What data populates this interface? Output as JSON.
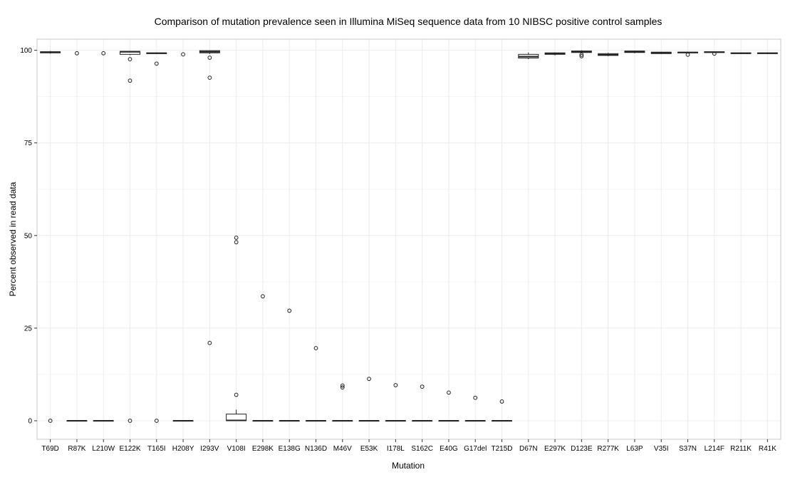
{
  "chart_data": {
    "type": "boxplot",
    "title": "Comparison of mutation prevalence seen in Illumina MiSeq sequence data from 10 NIBSC positive control samples",
    "xlabel": "Mutation",
    "ylabel": "Percent observed in read data",
    "ylim": [
      -5,
      103
    ],
    "yticks": [
      0,
      25,
      50,
      75,
      100
    ],
    "grid": true,
    "categories": [
      "T69D",
      "R87K",
      "L210W",
      "E122K",
      "T165I",
      "H208Y",
      "I293V",
      "V108I",
      "E298K",
      "E138G",
      "N136D",
      "M46V",
      "E53K",
      "I178L",
      "S162C",
      "E40G",
      "G17del",
      "T215D",
      "D67N",
      "E297K",
      "D123E",
      "R277K",
      "L63P",
      "V35I",
      "S37N",
      "L214F",
      "R211K",
      "R41K"
    ],
    "boxes": [
      {
        "min": 99.1,
        "q1": 99.3,
        "median": 99.5,
        "q3": 99.6,
        "max": 99.8,
        "outliers": [
          0
        ]
      },
      {
        "min": 0,
        "q1": 0,
        "median": 0,
        "q3": 0,
        "max": 0,
        "outliers": [
          99.2
        ]
      },
      {
        "min": 0,
        "q1": 0,
        "median": 0,
        "q3": 0,
        "max": 0,
        "outliers": [
          99.2
        ]
      },
      {
        "min": 98.7,
        "q1": 98.9,
        "median": 99.6,
        "q3": 99.7,
        "max": 99.8,
        "outliers": [
          97.6,
          91.8,
          0
        ]
      },
      {
        "min": 99.0,
        "q1": 99.1,
        "median": 99.2,
        "q3": 99.3,
        "max": 99.4,
        "outliers": [
          96.4,
          0
        ]
      },
      {
        "min": 0,
        "q1": 0,
        "median": 0,
        "q3": 0,
        "max": 0,
        "outliers": [
          98.9
        ]
      },
      {
        "min": 99.0,
        "q1": 99.3,
        "median": 99.6,
        "q3": 99.9,
        "max": 100,
        "outliers": [
          98.0,
          92.6,
          21.0
        ]
      },
      {
        "min": 0,
        "q1": 0,
        "median": 0.1,
        "q3": 1.8,
        "max": 3.0,
        "outliers": [
          49.4,
          48.2,
          7.0
        ]
      },
      {
        "min": 0,
        "q1": 0,
        "median": 0,
        "q3": 0,
        "max": 0,
        "outliers": [
          33.6
        ]
      },
      {
        "min": 0,
        "q1": 0,
        "median": 0,
        "q3": 0,
        "max": 0,
        "outliers": [
          29.7
        ]
      },
      {
        "min": 0,
        "q1": 0,
        "median": 0,
        "q3": 0,
        "max": 0,
        "outliers": [
          19.6
        ]
      },
      {
        "min": 0,
        "q1": 0,
        "median": 0,
        "q3": 0,
        "max": 0,
        "outliers": [
          9.5,
          9.0
        ]
      },
      {
        "min": 0,
        "q1": 0,
        "median": 0,
        "q3": 0,
        "max": 0,
        "outliers": [
          11.3
        ]
      },
      {
        "min": 0,
        "q1": 0,
        "median": 0,
        "q3": 0,
        "max": 0,
        "outliers": [
          9.6
        ]
      },
      {
        "min": 0,
        "q1": 0,
        "median": 0,
        "q3": 0,
        "max": 0,
        "outliers": [
          9.2
        ]
      },
      {
        "min": 0,
        "q1": 0,
        "median": 0,
        "q3": 0,
        "max": 0,
        "outliers": [
          7.6
        ]
      },
      {
        "min": 0,
        "q1": 0,
        "median": 0,
        "q3": 0,
        "max": 0,
        "outliers": [
          6.2
        ]
      },
      {
        "min": 0,
        "q1": 0,
        "median": 0,
        "q3": 0,
        "max": 0,
        "outliers": [
          5.2
        ]
      },
      {
        "min": 97.6,
        "q1": 97.9,
        "median": 98.3,
        "q3": 98.9,
        "max": 99.4,
        "outliers": []
      },
      {
        "min": 98.6,
        "q1": 98.9,
        "median": 99.1,
        "q3": 99.3,
        "max": 99.4,
        "outliers": []
      },
      {
        "min": 99.2,
        "q1": 99.4,
        "median": 99.6,
        "q3": 99.8,
        "max": 100,
        "outliers": [
          98.8,
          98.4
        ]
      },
      {
        "min": 98.4,
        "q1": 98.6,
        "median": 98.8,
        "q3": 99.1,
        "max": 99.3,
        "outliers": []
      },
      {
        "min": 99.2,
        "q1": 99.4,
        "median": 99.6,
        "q3": 99.8,
        "max": 99.9,
        "outliers": []
      },
      {
        "min": 99.0,
        "q1": 99.1,
        "median": 99.3,
        "q3": 99.5,
        "max": 99.6,
        "outliers": []
      },
      {
        "min": 99.2,
        "q1": 99.3,
        "median": 99.4,
        "q3": 99.5,
        "max": 99.6,
        "outliers": [
          98.8
        ]
      },
      {
        "min": 99.3,
        "q1": 99.4,
        "median": 99.5,
        "q3": 99.6,
        "max": 99.7,
        "outliers": [
          99.1
        ]
      },
      {
        "min": 99.0,
        "q1": 99.1,
        "median": 99.2,
        "q3": 99.3,
        "max": 99.4,
        "outliers": []
      },
      {
        "min": 99.0,
        "q1": 99.1,
        "median": 99.2,
        "q3": 99.3,
        "max": 99.4,
        "outliers": []
      }
    ],
    "colors": {
      "panel_border": "#c9c9c9",
      "grid": "#ececec",
      "box_stroke": "#222222",
      "box_fill": "#ffffff"
    }
  }
}
